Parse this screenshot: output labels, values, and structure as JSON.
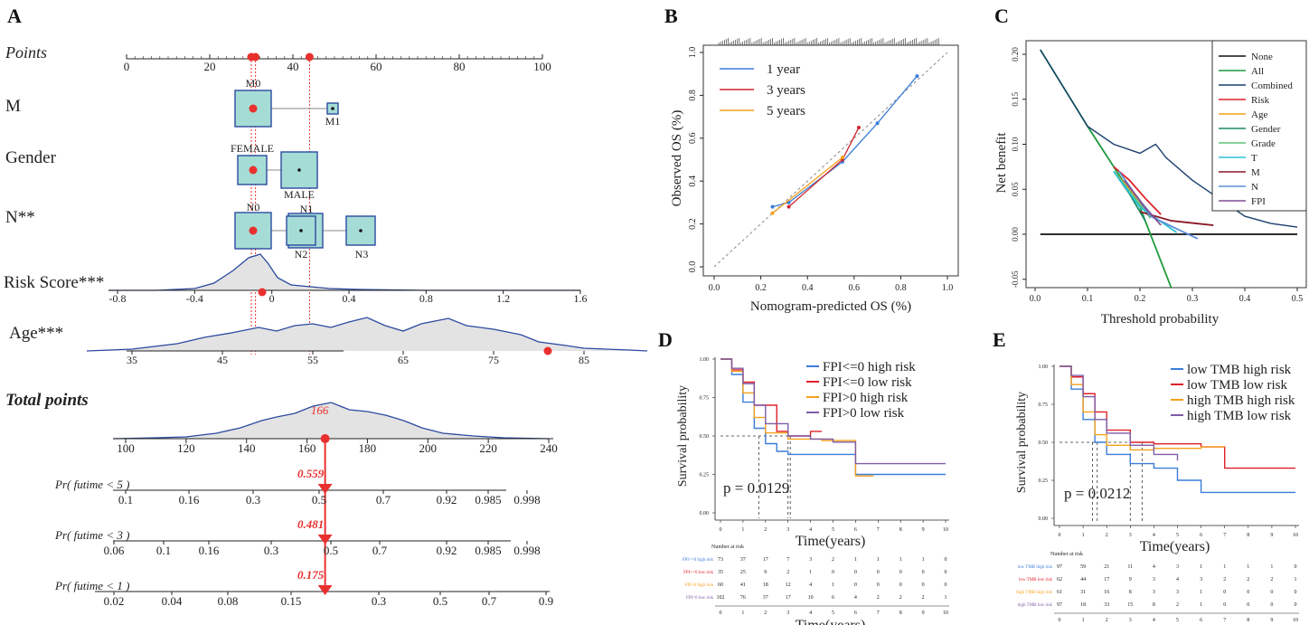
{
  "panels": {
    "A": "A",
    "B": "B",
    "C": "C",
    "D": "D",
    "E": "E"
  },
  "colors": {
    "red": "#e8312f",
    "blue": "#2b4aa0",
    "box_fill": "#a6dcd6",
    "density_fill": "#e3e3e3",
    "km_blue": "#3b7dd8",
    "km_red": "#e0202a",
    "km_orange": "#f4a11c",
    "km_purple": "#7e5ca8"
  },
  "chart_data": [
    {
      "id": "A",
      "type": "nomogram",
      "points_label": "Points",
      "points_axis": {
        "min": 0,
        "max": 100,
        "ticks": [
          0,
          20,
          40,
          60,
          80,
          100
        ]
      },
      "points_markers": [
        30,
        31,
        44
      ],
      "variables": [
        {
          "name": "M",
          "levels": [
            {
              "label": "M0",
              "points": 30
            },
            {
              "label": "M1",
              "points": 49
            }
          ]
        },
        {
          "name": "Gender",
          "levels": [
            {
              "label": "FEMALE",
              "points": 30
            },
            {
              "label": "MALE",
              "points": 41
            }
          ]
        },
        {
          "name": "N**",
          "levels": [
            {
              "label": "N0",
              "points": 30
            },
            {
              "label": "N1",
              "points": 43
            },
            {
              "label": "N2",
              "points": 42
            },
            {
              "label": "N3",
              "points": 56
            }
          ]
        }
      ],
      "risk_score": {
        "label": "Risk Score***",
        "ticks": [
          "-0.8",
          "-0.4",
          "0",
          "0.4",
          "0.8",
          "1.2",
          "1.6"
        ],
        "marker": -0.05
      },
      "age": {
        "label": "Age***",
        "ticks": [
          "35",
          "45",
          "55",
          "65",
          "75",
          "85"
        ],
        "marker": 81
      },
      "total_points": {
        "label": "Total points",
        "ticks": [
          "100",
          "120",
          "140",
          "160",
          "180",
          "200",
          "220",
          "240"
        ],
        "marker": 166,
        "marker_label": "166"
      },
      "probabilities": [
        {
          "label": "Pr( futime < 5 )",
          "value_label": "0.559",
          "ticks": [
            "0.1",
            "0.16",
            "0.3",
            "0.5",
            "0.7",
            "0.92",
            "0.985",
            "0.998"
          ]
        },
        {
          "label": "Pr( futime < 3 )",
          "value_label": "0.481",
          "ticks": [
            "0.06",
            "0.1",
            "0.16",
            "0.3",
            "0.5",
            "0.7",
            "0.92",
            "0.985",
            "0.998"
          ]
        },
        {
          "label": "Pr( futime < 1 )",
          "value_label": "0.175",
          "ticks": [
            "0.02",
            "0.04",
            "0.08",
            "0.15",
            "0.3",
            "0.5",
            "0.7",
            "0.9"
          ]
        }
      ]
    },
    {
      "id": "B",
      "type": "line",
      "title": "",
      "xlabel": "Nomogram-predicted OS (%)",
      "ylabel": "Observed OS (%)",
      "xlim": [
        0,
        1
      ],
      "ylim": [
        0,
        1
      ],
      "xticks": [
        "0.0",
        "0.2",
        "0.4",
        "0.6",
        "0.8",
        "1.0"
      ],
      "yticks": [
        "0.0",
        "0.2",
        "0.4",
        "0.6",
        "0.8",
        "1.0"
      ],
      "series": [
        {
          "name": "1 year",
          "color": "#3b7dd8",
          "x": [
            0.25,
            0.32,
            0.55,
            0.7,
            0.87
          ],
          "y": [
            0.28,
            0.3,
            0.49,
            0.67,
            0.89
          ]
        },
        {
          "name": "3 years",
          "color": "#d2242c",
          "x": [
            0.32,
            0.55,
            0.62
          ],
          "y": [
            0.28,
            0.5,
            0.65
          ]
        },
        {
          "name": "5 years",
          "color": "#f4a11c",
          "x": [
            0.25,
            0.55
          ],
          "y": [
            0.25,
            0.51
          ]
        }
      ]
    },
    {
      "id": "C",
      "type": "line",
      "title": "",
      "xlabel": "Threshold probability",
      "ylabel": "Net benefit",
      "xlim": [
        0,
        0.5
      ],
      "ylim": [
        -0.065,
        0.21
      ],
      "xticks": [
        "0.0",
        "0.1",
        "0.2",
        "0.3",
        "0.4",
        "0.5"
      ],
      "yticks": [
        "-0.05",
        "0.00",
        "0.05",
        "0.10",
        "0.15",
        "0.20"
      ],
      "legend": [
        "None",
        "All",
        "Combined",
        "Risk",
        "Age",
        "Gender",
        "Grade",
        "T",
        "M",
        "N",
        "FPI"
      ],
      "series": [
        {
          "name": "None",
          "color": "#111111",
          "x": [
            0.01,
            0.5
          ],
          "y": [
            0,
            0
          ]
        },
        {
          "name": "All",
          "color": "#1e9a3a",
          "x": [
            0.01,
            0.1,
            0.2,
            0.26
          ],
          "y": [
            0.205,
            0.12,
            0.03,
            -0.06
          ]
        },
        {
          "name": "Combined",
          "color": "#1b3f6e",
          "x": [
            0.01,
            0.1,
            0.15,
            0.2,
            0.23,
            0.25,
            0.3,
            0.35,
            0.4,
            0.45,
            0.5
          ],
          "y": [
            0.205,
            0.12,
            0.1,
            0.09,
            0.1,
            0.085,
            0.06,
            0.04,
            0.02,
            0.012,
            0.008
          ]
        },
        {
          "name": "Risk",
          "color": "#e0202a",
          "x": [
            0.15,
            0.18,
            0.21,
            0.24
          ],
          "y": [
            0.075,
            0.06,
            0.04,
            0.022
          ]
        },
        {
          "name": "Age",
          "color": "#f4a11c",
          "x": [
            0.15,
            0.18,
            0.22
          ],
          "y": [
            0.07,
            0.05,
            0.02
          ]
        },
        {
          "name": "Gender",
          "color": "#1a8a6a",
          "x": [
            0.15,
            0.18,
            0.21
          ],
          "y": [
            0.07,
            0.045,
            0.015
          ]
        },
        {
          "name": "Grade",
          "color": "#5fc47a",
          "x": [
            0.15,
            0.18,
            0.22
          ],
          "y": [
            0.07,
            0.048,
            0.018
          ]
        },
        {
          "name": "T",
          "color": "#2cc3d3",
          "x": [
            0.15,
            0.2,
            0.27
          ],
          "y": [
            0.07,
            0.03,
            0.002
          ]
        },
        {
          "name": "M",
          "color": "#8b1a2a",
          "x": [
            0.2,
            0.26,
            0.34
          ],
          "y": [
            0.025,
            0.015,
            0.01
          ]
        },
        {
          "name": "N",
          "color": "#5b8fd6",
          "x": [
            0.16,
            0.22,
            0.31
          ],
          "y": [
            0.07,
            0.02,
            -0.005
          ]
        },
        {
          "name": "FPI",
          "color": "#7e4f92",
          "x": [
            0.17,
            0.21,
            0.24
          ],
          "y": [
            0.06,
            0.03,
            0.01
          ]
        }
      ]
    },
    {
      "id": "D",
      "type": "line",
      "title": "",
      "xlabel": "Time(years)",
      "ylabel": "Survival probability",
      "xlim": [
        0,
        10
      ],
      "ylim": [
        0,
        1
      ],
      "xticks": [
        "0",
        "1",
        "2",
        "3",
        "4",
        "5",
        "6",
        "7",
        "8",
        "9",
        "10"
      ],
      "yticks": [
        "0.00",
        "0.25",
        "0.50",
        "0.75",
        "1.00"
      ],
      "pvalue": "p = 0.0129",
      "median_times": [
        1.7,
        3.0,
        3.1
      ],
      "series": [
        {
          "name": "FPI<=0 high risk",
          "color": "#3b7dd8",
          "x": [
            0,
            0.5,
            1,
            1.5,
            2,
            2.5,
            3,
            4,
            6,
            10
          ],
          "y": [
            1,
            0.9,
            0.72,
            0.55,
            0.45,
            0.4,
            0.38,
            0.38,
            0.25,
            0.25
          ]
        },
        {
          "name": "FPI<=0 low risk",
          "color": "#e0202a",
          "x": [
            0,
            0.5,
            1,
            1.5,
            2.5,
            3,
            4,
            4.5
          ],
          "y": [
            1,
            0.93,
            0.85,
            0.7,
            0.53,
            0.5,
            0.53,
            0.53
          ]
        },
        {
          "name": "FPI>0 high risk",
          "color": "#f4a11c",
          "x": [
            0,
            0.5,
            1,
            1.5,
            2,
            3,
            4.5,
            6,
            6.8
          ],
          "y": [
            1,
            0.92,
            0.78,
            0.62,
            0.52,
            0.48,
            0.47,
            0.24,
            0.24
          ]
        },
        {
          "name": "FPI>0 low risk",
          "color": "#7e5ca8",
          "x": [
            0,
            0.5,
            1,
            1.5,
            2,
            3,
            4,
            5,
            6,
            10
          ],
          "y": [
            1,
            0.94,
            0.84,
            0.7,
            0.58,
            0.5,
            0.48,
            0.46,
            0.32,
            0.32
          ]
        }
      ],
      "risk_table": {
        "title": "Number at risk",
        "rows": [
          {
            "label": "FPI<=0 high risk",
            "color": "#3b7dd8",
            "values": [
              "73",
              "37",
              "17",
              "7",
              "3",
              "2",
              "1",
              "1",
              "1",
              "1",
              "0"
            ]
          },
          {
            "label": "FPI<=0 low risk",
            "color": "#e0202a",
            "values": [
              "35",
              "25",
              "9",
              "2",
              "1",
              "0",
              "0",
              "0",
              "0",
              "0",
              "0"
            ]
          },
          {
            "label": "FPI>0 high risk",
            "color": "#f4a11c",
            "values": [
              "60",
              "41",
              "18",
              "12",
              "4",
              "1",
              "0",
              "0",
              "0",
              "0",
              "0"
            ]
          },
          {
            "label": "FPI>0 low risk",
            "color": "#7e5ca8",
            "values": [
              "102",
              "76",
              "37",
              "17",
              "10",
              "6",
              "4",
              "2",
              "2",
              "2",
              "1"
            ]
          }
        ],
        "xticks": [
          "0",
          "1",
          "2",
          "3",
          "4",
          "5",
          "6",
          "7",
          "8",
          "9",
          "10"
        ],
        "xlabel": "Time(years)"
      }
    },
    {
      "id": "E",
      "type": "line",
      "title": "",
      "xlabel": "Time(years)",
      "ylabel": "Survival probability",
      "xlim": [
        0,
        10
      ],
      "ylim": [
        0,
        1
      ],
      "xticks": [
        "0",
        "1",
        "2",
        "3",
        "4",
        "5",
        "6",
        "7",
        "8",
        "9",
        "10"
      ],
      "yticks": [
        "0.00",
        "0.25",
        "0.50",
        "0.75",
        "1.00"
      ],
      "pvalue": "p = 0.0212",
      "median_times": [
        1.4,
        1.6,
        3.0,
        3.5
      ],
      "series": [
        {
          "name": "low TMB high risk",
          "color": "#3b7dd8",
          "x": [
            0,
            0.5,
            1,
            1.5,
            2,
            3,
            4,
            5,
            6,
            10
          ],
          "y": [
            1,
            0.85,
            0.65,
            0.5,
            0.42,
            0.36,
            0.33,
            0.25,
            0.17,
            0.17
          ]
        },
        {
          "name": "low TMB low risk",
          "color": "#e0202a",
          "x": [
            0,
            0.5,
            1,
            1.5,
            2,
            3,
            4,
            6,
            7,
            10
          ],
          "y": [
            1,
            0.93,
            0.82,
            0.7,
            0.58,
            0.5,
            0.49,
            0.47,
            0.33,
            0.33
          ]
        },
        {
          "name": "high TMB high risk",
          "color": "#f4a11c",
          "x": [
            0,
            0.5,
            1,
            1.5,
            2,
            3,
            4,
            6,
            7
          ],
          "y": [
            1,
            0.88,
            0.7,
            0.55,
            0.48,
            0.45,
            0.46,
            0.47,
            0.47
          ]
        },
        {
          "name": "high TMB low risk",
          "color": "#7e5ca8",
          "x": [
            0,
            0.5,
            1,
            1.5,
            2,
            3,
            4,
            5
          ],
          "y": [
            1,
            0.94,
            0.8,
            0.65,
            0.56,
            0.48,
            0.42,
            0.38
          ]
        }
      ],
      "risk_table": {
        "title": "Number at risk",
        "rows": [
          {
            "label": "low TMB high risk",
            "color": "#3b7dd8",
            "values": [
              "97",
              "59",
              "21",
              "11",
              "4",
              "3",
              "1",
              "1",
              "1",
              "1",
              "0"
            ]
          },
          {
            "label": "low TMB low risk",
            "color": "#e0202a",
            "values": [
              "62",
              "44",
              "17",
              "9",
              "3",
              "4",
              "3",
              "2",
              "2",
              "2",
              "1"
            ]
          },
          {
            "label": "high TMB high risk",
            "color": "#f4a11c",
            "values": [
              "61",
              "31",
              "16",
              "8",
              "3",
              "3",
              "1",
              "0",
              "0",
              "0",
              "0"
            ]
          },
          {
            "label": "high TMB low risk",
            "color": "#7e5ca8",
            "values": [
              "97",
              "18",
              "33",
              "15",
              "8",
              "2",
              "1",
              "0",
              "0",
              "0",
              "0"
            ]
          }
        ],
        "xticks": [
          "0",
          "1",
          "2",
          "3",
          "4",
          "5",
          "6",
          "7",
          "8",
          "9",
          "10"
        ],
        "xlabel": "Time(years)"
      }
    }
  ]
}
